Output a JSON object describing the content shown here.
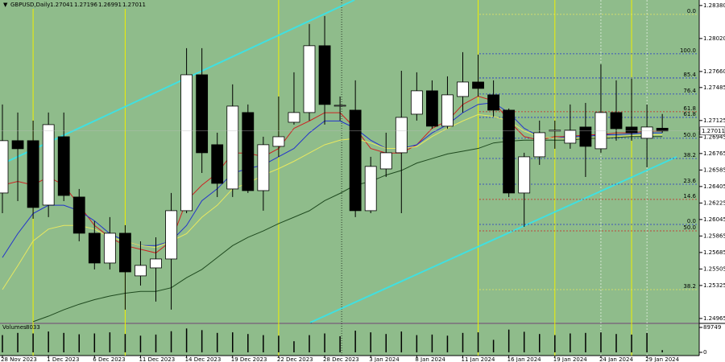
{
  "chart_data": {
    "type": "candlestick",
    "title": "GBPUSD,Daily",
    "background": "#8fbc8b",
    "up_color": "#ffffff",
    "down_color": "#000000",
    "categories": [
      "28 Nov 2023",
      null,
      null,
      "1 Dec 2023",
      null,
      null,
      "6 Dec 2023",
      null,
      null,
      "11 Dec 2023",
      null,
      null,
      "14 Dec 2023",
      null,
      null,
      "19 Dec 2023",
      null,
      null,
      "22 Dec 2023",
      null,
      null,
      "28 Dec 2023",
      null,
      null,
      "3 Jan 2024",
      null,
      null,
      "8 Jan 2024",
      null,
      null,
      "11 Jan 2024",
      null,
      null,
      "16 Jan 2024",
      null,
      null,
      "19 Jan 2024",
      null,
      null,
      "24 Jan 2024",
      null,
      null,
      "29 Jan 2024",
      null
    ],
    "open": [
      1.26334,
      1.26905,
      1.26905,
      1.26202,
      1.26948,
      1.2629,
      1.25895,
      1.2557,
      1.25895,
      1.2543,
      1.25517,
      1.25614,
      1.26141,
      1.27624,
      1.26861,
      1.26378,
      1.27212,
      1.2636,
      1.26843,
      1.27106,
      1.27212,
      1.27941,
      1.27282,
      1.27238,
      1.26141,
      1.26597,
      1.26773,
      1.27194,
      1.27449,
      1.27063,
      1.27387,
      1.27545,
      1.27405,
      1.27238,
      1.26334,
      1.26729,
      1.2701,
      1.26878,
      1.27054,
      1.26817,
      1.27212,
      1.27054,
      1.26931,
      1.27041
    ],
    "high": [
      1.273,
      1.27212,
      1.27124,
      1.27212,
      1.27212,
      1.26378,
      1.26027,
      1.26071,
      1.25983,
      1.25807,
      1.25851,
      1.26334,
      1.27914,
      1.27914,
      1.26992,
      1.27519,
      1.273,
      1.26948,
      1.27387,
      1.27651,
      1.28178,
      1.28265,
      1.27387,
      1.27563,
      1.26729,
      1.26992,
      1.27668,
      1.27651,
      1.27563,
      1.27607,
      1.2787,
      1.27844,
      1.27563,
      1.27256,
      1.26773,
      1.27124,
      1.27124,
      1.273,
      1.27317,
      1.27739,
      1.27563,
      1.27581,
      1.273,
      1.27196
    ],
    "low": [
      1.26114,
      1.26246,
      1.26053,
      1.26071,
      1.26246,
      1.25807,
      1.255,
      1.255,
      1.25061,
      1.25324,
      1.25149,
      1.25061,
      1.26114,
      1.26553,
      1.2629,
      1.2629,
      1.26334,
      1.26141,
      1.26729,
      1.2708,
      1.27124,
      1.2708,
      1.27124,
      1.26071,
      1.26114,
      1.26509,
      1.26114,
      1.27124,
      1.27036,
      1.27036,
      1.27212,
      1.27387,
      1.27168,
      1.2629,
      1.25965,
      1.26641,
      1.26817,
      1.26817,
      1.26509,
      1.26773,
      1.26905,
      1.26905,
      1.26615,
      1.26991
    ],
    "close": [
      1.26905,
      1.26817,
      1.26176,
      1.2708,
      1.26307,
      1.25895,
      1.2557,
      1.25895,
      1.25473,
      1.25544,
      1.25614,
      1.26141,
      1.27624,
      1.26773,
      1.26439,
      1.27282,
      1.2636,
      1.26861,
      1.26948,
      1.27212,
      1.27941,
      1.273,
      1.27291,
      1.26141,
      1.26624,
      1.26773,
      1.27159,
      1.27449,
      1.27063,
      1.27405,
      1.27545,
      1.27475,
      1.27238,
      1.26334,
      1.26729,
      1.26992,
      1.27019,
      1.27019,
      1.26843,
      1.27212,
      1.27036,
      1.26992,
      1.27054,
      1.27011
    ],
    "overlays": [
      {
        "color": "#cc2222",
        "values": [
          1.2642,
          1.2646,
          1.2642,
          1.2651,
          1.2642,
          1.262,
          1.2598,
          1.2585,
          1.2576,
          1.2572,
          1.2568,
          1.2581,
          1.2625,
          1.2642,
          1.2655,
          1.2677,
          1.2677,
          1.2673,
          1.2682,
          1.2704,
          1.2712,
          1.2721,
          1.2721,
          1.2704,
          1.2682,
          1.2677,
          1.2677,
          1.2686,
          1.2704,
          1.2712,
          1.273,
          1.2739,
          1.2734,
          1.2712,
          1.2695,
          1.2691,
          1.2695,
          1.2695,
          1.2697,
          1.2697,
          1.2699,
          1.2699,
          1.2701,
          1.2701
        ]
      },
      {
        "color": "#2233cc",
        "values": [
          1.2563,
          1.2589,
          1.2611,
          1.262,
          1.262,
          1.2614,
          1.2603,
          1.2589,
          1.2581,
          1.2576,
          1.2576,
          1.2581,
          1.2598,
          1.2625,
          1.2638,
          1.2655,
          1.266,
          1.2664,
          1.2673,
          1.2682,
          1.2699,
          1.2712,
          1.2712,
          1.2704,
          1.2691,
          1.2682,
          1.2682,
          1.2686,
          1.2699,
          1.2708,
          1.2721,
          1.273,
          1.2732,
          1.2721,
          1.2704,
          1.2695,
          1.2693,
          1.2695,
          1.2695,
          1.2697,
          1.2697,
          1.2698,
          1.2699,
          1.2699
        ]
      },
      {
        "color": "#e8e860",
        "values": [
          1.2528,
          1.2554,
          1.2581,
          1.2594,
          1.2598,
          1.2598,
          1.2594,
          1.2585,
          1.2581,
          1.2576,
          1.2574,
          1.2581,
          1.2589,
          1.2607,
          1.262,
          1.2638,
          1.2644,
          1.2653,
          1.266,
          1.2668,
          1.2677,
          1.2686,
          1.2691,
          1.2693,
          1.2688,
          1.2682,
          1.2682,
          1.2684,
          1.2695,
          1.2704,
          1.2712,
          1.2719,
          1.2717,
          1.2712,
          1.2701,
          1.2695,
          1.2693,
          1.2693,
          1.2693,
          1.2694,
          1.2695,
          1.2696,
          1.2697,
          1.2697
        ]
      },
      {
        "color": "#1f4a1f",
        "values": [
          null,
          null,
          1.2493,
          1.2499,
          1.2506,
          1.2512,
          1.2517,
          1.2521,
          1.2524,
          1.2526,
          1.2526,
          1.253,
          1.2541,
          1.255,
          1.2563,
          1.2576,
          1.2585,
          1.2592,
          1.26,
          1.2607,
          1.2614,
          1.2625,
          1.2633,
          1.2642,
          1.2646,
          1.2653,
          1.2658,
          1.2666,
          1.2671,
          1.2676,
          1.2679,
          1.2682,
          1.2688,
          1.269,
          1.2691,
          1.2691,
          1.2691,
          1.2691,
          1.2693,
          1.2693,
          1.2694,
          1.2695,
          1.2695,
          1.2695
        ]
      }
    ],
    "fib_levels": [
      {
        "label": "100.0",
        "price": 1.27853,
        "color": "#2233cc"
      },
      {
        "label": "85.4",
        "price": 1.27589,
        "color": "#2233cc"
      },
      {
        "label": "76.4",
        "price": 1.27414,
        "color": "#2233cc"
      },
      {
        "label": "61.8",
        "price": 1.27221,
        "color": "#cc2222"
      },
      {
        "label": "61.8",
        "price": 1.27159,
        "color": "#2233cc"
      },
      {
        "label": "50.0",
        "price": 1.26931,
        "color": "#2233cc"
      },
      {
        "label": "38.2",
        "price": 1.26711,
        "color": "#2233cc"
      },
      {
        "label": "23.6",
        "price": 1.2643,
        "color": "#2233cc"
      },
      {
        "label": "14.6",
        "price": 1.26264,
        "color": "#cc2222"
      },
      {
        "label": "0.0",
        "price": 1.25991,
        "color": "#2233cc"
      },
      {
        "label": "50.0",
        "price": 1.25921,
        "color": "#cc2222"
      },
      {
        "label": "38.2",
        "price": 1.2528,
        "color": "#e8e860"
      },
      {
        "label": "0.0",
        "price": 1.28283,
        "color": "#e8e860"
      }
    ],
    "ylim": [
      1.2492,
      1.2844
    ],
    "yticks": [
      {
        "value": 1.2838,
        "label": "1.28380"
      },
      {
        "value": 1.2802,
        "label": "1.28020"
      },
      {
        "value": 1.2766,
        "label": "1.27660"
      },
      1.27485,
      1.27125,
      1.26945,
      1.26765,
      1.26585,
      1.26405,
      1.26225,
      1.26045,
      1.25865,
      1.25685,
      1.25505,
      1.25325,
      1.24965
    ],
    "volume_title": "Volumes",
    "volume": [
      62000,
      70000,
      68000,
      75000,
      70000,
      65000,
      68000,
      72000,
      66000,
      60000,
      64000,
      76000,
      86000,
      80000,
      70000,
      72000,
      66000,
      62000,
      60000,
      40000,
      62000,
      68000,
      58000,
      78000,
      72000,
      66000,
      75000,
      62000,
      64000,
      60000,
      70000,
      72000,
      45000,
      82000,
      74000,
      66000,
      62000,
      68000,
      70000,
      72000,
      66000,
      64000,
      70000,
      8033
    ],
    "volume_lim": [
      0,
      89749
    ],
    "volume_ticks": [
      0,
      89749
    ]
  }
}
